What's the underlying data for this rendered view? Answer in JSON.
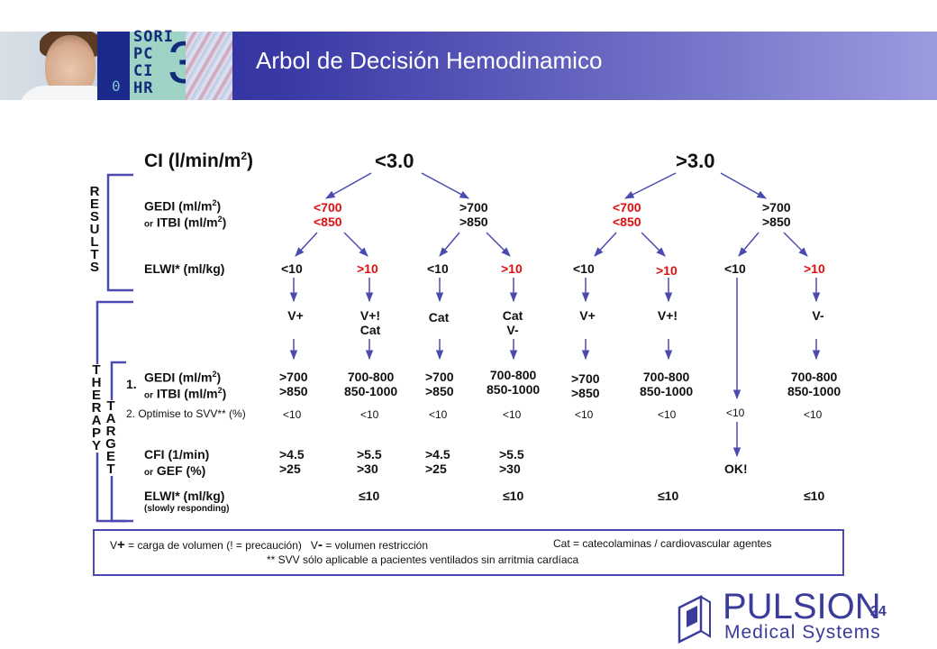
{
  "header": {
    "title": "Arbol de Decisión Hemodinamico",
    "monitor_lines": [
      "SORI",
      "PC",
      "CI",
      "HR"
    ],
    "monitor_big": "3",
    "monitor_zero": "0"
  },
  "diagram": {
    "ci_label": "CI (l/min/m",
    "ci_sup": "2",
    "ci_close": ")",
    "ci_low": "<3.0",
    "ci_high": ">3.0",
    "gedi_label": "GEDI (ml/m",
    "gedi_sup": "2",
    "gedi_close": ")",
    "itbi_or": "or",
    "itbi_label": "ITBI (ml/m",
    "itbi_sup": "2",
    "itbi_close": ")",
    "gedi_values": [
      {
        "l1": "<700",
        "l2": "<850",
        "red": true
      },
      {
        "l1": ">700",
        "l2": ">850",
        "red": false
      },
      {
        "l1": "<700",
        "l2": "<850",
        "red": true
      },
      {
        "l1": ">700",
        "l2": ">850",
        "red": false
      }
    ],
    "elwi_label": "ELWI* (ml/kg)",
    "elwi_values": [
      "<10",
      ">10",
      "<10",
      ">10",
      "<10",
      ">10",
      "<10",
      ">10"
    ],
    "elwi_red": [
      false,
      true,
      false,
      true,
      false,
      true,
      false,
      true
    ],
    "therapies": [
      {
        "l1": "V+",
        "l2": ""
      },
      {
        "l1": "V+!",
        "l2": "Cat"
      },
      {
        "l1": "Cat",
        "l2": ""
      },
      {
        "l1": "Cat",
        "l2": "V-"
      },
      {
        "l1": "V+",
        "l2": ""
      },
      {
        "l1": "V+!",
        "l2": ""
      },
      {
        "l1": "V-",
        "l2": ""
      }
    ],
    "results_letters": [
      "R",
      "E",
      "S",
      "U",
      "L",
      "T",
      "S"
    ],
    "therapy_letters": [
      "T",
      "H",
      "E",
      "R",
      "A",
      "P",
      "Y"
    ],
    "target_letters": [
      "T",
      "A",
      "R",
      "G",
      "E",
      "T"
    ],
    "target1_num": "1.",
    "target_gedi_values": [
      {
        "l1": ">700",
        "l2": ">850"
      },
      {
        "l1": "700-800",
        "l2": "850-1000"
      },
      {
        "l1": ">700",
        "l2": ">850"
      },
      {
        "l1": "700-800",
        "l2": "850-1000"
      },
      {
        "l1": ">700",
        "l2": ">850"
      },
      {
        "l1": "700-800",
        "l2": "850-1000"
      },
      {
        "l1": "700-800",
        "l2": "850-1000"
      }
    ],
    "svv_label": "2.  Optimise to SVV** (%)",
    "svv_values": [
      "<10",
      "<10",
      "<10",
      "<10",
      "<10",
      "<10",
      "<10",
      "<10"
    ],
    "cfi_label": "CFI (1/min)",
    "gef_or": "or",
    "gef_label": "GEF (%)",
    "cfi_values": [
      {
        "l1": ">4.5",
        "l2": ">25"
      },
      {
        "l1": ">5.5",
        "l2": ">30"
      },
      {
        "l1": ">4.5",
        "l2": ">25"
      },
      {
        "l1": ">5.5",
        "l2": ">30"
      }
    ],
    "ok_label": "OK!",
    "elwi2_label": "ELWI* (ml/kg)",
    "elwi2_note": "(slowly responding)",
    "elwi2_values": [
      "≤10",
      "≤10",
      "≤10",
      "≤10"
    ]
  },
  "legend": {
    "line1_vplus": "V",
    "line1_plus": "+",
    "line1_a": "= carga de volumen (! = precaución)",
    "line1_vminus": "V",
    "line1_minus": "-",
    "line1_b": "= volumen restricción",
    "line1_c": "Cat = catecolaminas / cardiovascular agentes",
    "line2": "** SVV sólo aplicable a pacientes ventilados  sin arritmia cardíaca"
  },
  "footer": {
    "page_number": "24",
    "logo_name": "PULSION",
    "logo_sub": "Medical Systems"
  },
  "colors": {
    "banner": "#2a2a96",
    "accent": "#3b3b9b",
    "red_value": "#e01010",
    "legend_border": "#4a4ab0"
  }
}
